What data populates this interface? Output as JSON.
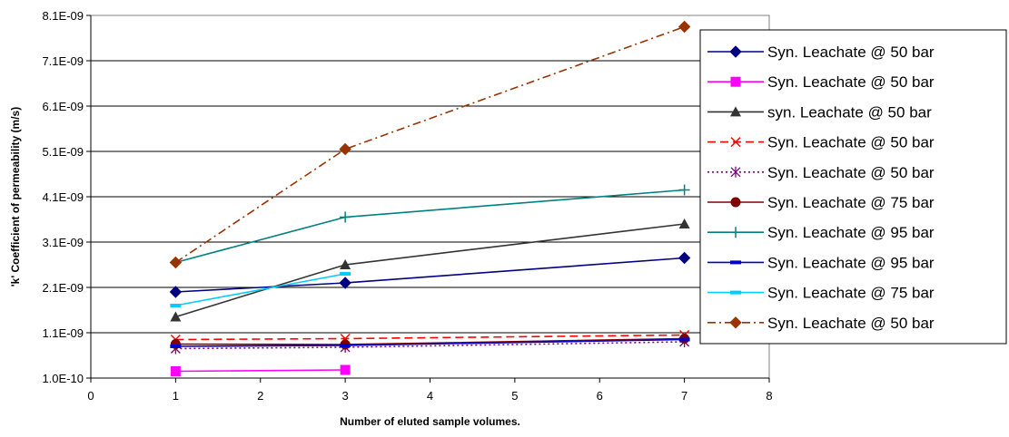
{
  "chart_data": {
    "type": "line",
    "xlabel": "Number of eluted sample volumes.",
    "ylabel": "'k' Coefficient of permeability (m/s)",
    "xlim": [
      0,
      8
    ],
    "ylim": [
      1e-10,
      8.1e-09
    ],
    "x_ticks": [
      "0",
      "1",
      "2",
      "3",
      "4",
      "5",
      "6",
      "7",
      "8"
    ],
    "y_ticks": [
      "1.0E-10",
      "1.1E-09",
      "2.1E-09",
      "3.1E-09",
      "4.1E-09",
      "5.1E-09",
      "6.1E-09",
      "7.1E-09",
      "8.1E-09"
    ],
    "grid": "horizontal",
    "legend_position": "right",
    "series": [
      {
        "name": "Syn. Leachate @ 50 bar",
        "color": "#000080",
        "dash": "solid",
        "marker": "diamond",
        "x": [
          1,
          3,
          7
        ],
        "y": [
          2e-09,
          2.2e-09,
          2.75e-09
        ]
      },
      {
        "name": "Syn. Leachate @ 50 bar",
        "color": "#ff00ff",
        "dash": "solid",
        "marker": "square",
        "x": [
          1,
          3
        ],
        "y": [
          2.5e-10,
          2.8e-10
        ]
      },
      {
        "name": "syn. Leachate @ 50 bar",
        "color": "#333333",
        "dash": "solid",
        "marker": "triangle",
        "x": [
          1,
          3,
          7
        ],
        "y": [
          1.45e-09,
          2.6e-09,
          3.5e-09
        ]
      },
      {
        "name": "Syn. Leachate @ 50 bar",
        "color": "#ff0000",
        "dash": "dash",
        "marker": "x",
        "x": [
          1,
          3,
          7
        ],
        "y": [
          9.5e-10,
          9.7e-10,
          1.05e-09
        ]
      },
      {
        "name": "Syn. Leachate @ 50 bar",
        "color": "#800080",
        "dash": "dot",
        "marker": "star",
        "x": [
          1,
          3,
          7
        ],
        "y": [
          7.5e-10,
          7.8e-10,
          9e-10
        ]
      },
      {
        "name": "Syn. Leachate @ 75 bar",
        "color": "#800000",
        "dash": "solid",
        "marker": "circle",
        "x": [
          1,
          3,
          7
        ],
        "y": [
          8.5e-10,
          8.4e-10,
          9.7e-10
        ]
      },
      {
        "name": "Syn. Leachate @ 95 bar",
        "color": "#008080",
        "dash": "solid",
        "marker": "plus",
        "x": [
          1,
          3,
          7
        ],
        "y": [
          2.65e-09,
          3.65e-09,
          4.25e-09
        ]
      },
      {
        "name": "Syn. Leachate @ 95 bar",
        "color": "#0000cc",
        "dash": "solid",
        "marker": "dash",
        "x": [
          1,
          3,
          7
        ],
        "y": [
          8e-10,
          8.2e-10,
          9.5e-10
        ]
      },
      {
        "name": "Syn. Leachate @ 75 bar",
        "color": "#00ccff",
        "dash": "solid",
        "marker": "dash",
        "x": [
          1,
          3
        ],
        "y": [
          1.7e-09,
          2.4e-09
        ]
      },
      {
        "name": "Syn. Leachate @ 50 bar",
        "color": "#993300",
        "dash": "dashdot",
        "marker": "diamond",
        "x": [
          1,
          3,
          7
        ],
        "y": [
          2.65e-09,
          5.15e-09,
          7.85e-09
        ]
      }
    ]
  }
}
